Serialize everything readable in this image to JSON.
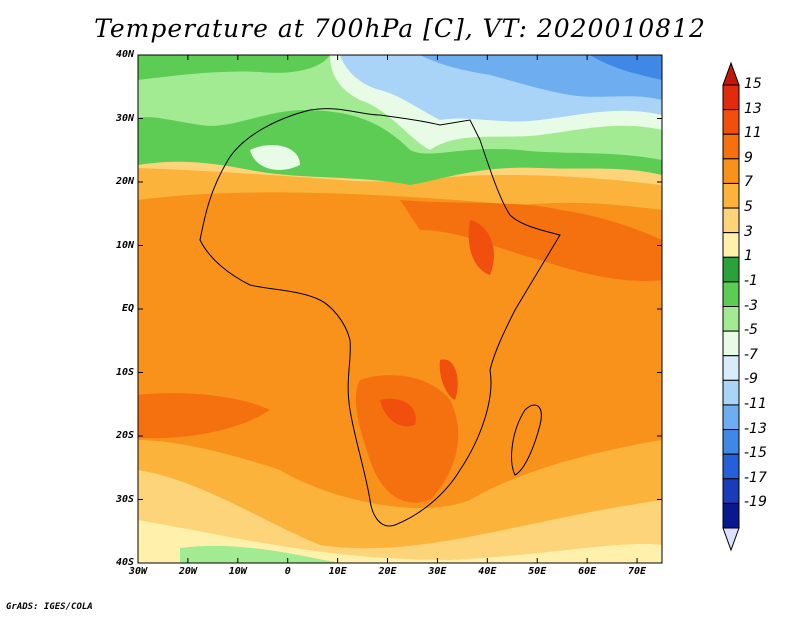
{
  "title": "Temperature at 700hPa [C], VT: 2020010812",
  "credit": "GrADS: IGES/COLA",
  "lat_ticks": [
    "40N",
    "30N",
    "20N",
    "10N",
    "EQ",
    "10S",
    "20S",
    "30S",
    "40S"
  ],
  "lon_ticks": [
    "30W",
    "20W",
    "10W",
    "0",
    "10E",
    "20E",
    "30E",
    "40E",
    "50E",
    "60E",
    "70E"
  ],
  "colorbar": {
    "labels": [
      "15",
      "13",
      "11",
      "9",
      "7",
      "5",
      "3",
      "1",
      "-1",
      "-3",
      "-5",
      "-7",
      "-9",
      "-11",
      "-13",
      "-15",
      "-17",
      "-19"
    ],
    "colors": [
      "#e22a0c",
      "#f04f0e",
      "#f5700f",
      "#f8921a",
      "#fbb33c",
      "#fdd47a",
      "#fff0ac",
      "#2ba13a",
      "#5ccc55",
      "#a3eb93",
      "#e7fbe7",
      "#d8ecfb",
      "#a9d3f7",
      "#6eaef0",
      "#3f88e6",
      "#2560d8",
      "#1a3cba",
      "#0a1890"
    ]
  }
}
